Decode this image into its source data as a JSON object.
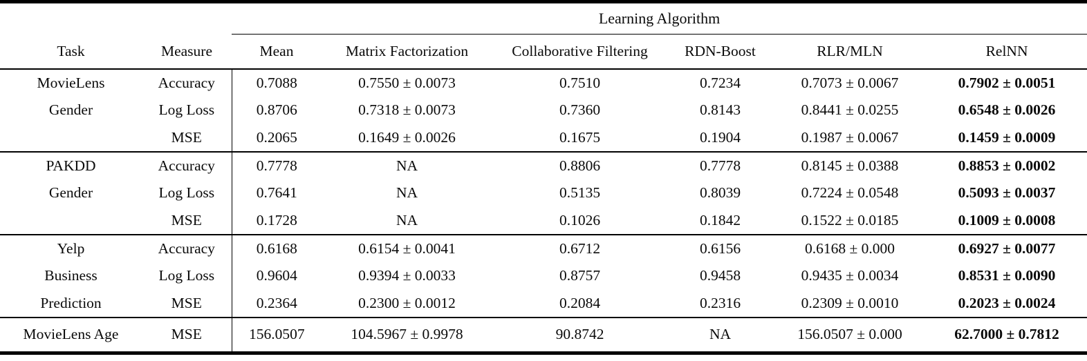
{
  "table": {
    "group_header": "Learning Algorithm",
    "columns": [
      "Task",
      "Measure",
      "Mean",
      "Matrix Factorization",
      "Collaborative Filtering",
      "RDN-Boost",
      "RLR/MLN",
      "RelNN"
    ],
    "groups": [
      {
        "task_lines": [
          "MovieLens",
          "Gender",
          ""
        ],
        "rows": [
          {
            "measure": "Accuracy",
            "values": [
              "0.7088",
              "0.7550 ± 0.0073",
              "0.7510",
              "0.7234",
              "0.7073 ± 0.0067",
              "0.7902 ± 0.0051"
            ]
          },
          {
            "measure": "Log Loss",
            "values": [
              "0.8706",
              "0.7318 ± 0.0073",
              "0.7360",
              "0.8143",
              "0.8441 ± 0.0255",
              "0.6548 ± 0.0026"
            ]
          },
          {
            "measure": "MSE",
            "values": [
              "0.2065",
              "0.1649 ± 0.0026",
              "0.1675",
              "0.1904",
              "0.1987 ± 0.0067",
              "0.1459 ± 0.0009"
            ]
          }
        ]
      },
      {
        "task_lines": [
          "PAKDD",
          "Gender",
          ""
        ],
        "rows": [
          {
            "measure": "Accuracy",
            "values": [
              "0.7778",
              "NA",
              "0.8806",
              "0.7778",
              "0.8145 ± 0.0388",
              "0.8853 ± 0.0002"
            ]
          },
          {
            "measure": "Log Loss",
            "values": [
              "0.7641",
              "NA",
              "0.5135",
              "0.8039",
              "0.7224 ± 0.0548",
              "0.5093 ± 0.0037"
            ]
          },
          {
            "measure": "MSE",
            "values": [
              "0.1728",
              "NA",
              "0.1026",
              "0.1842",
              "0.1522 ± 0.0185",
              "0.1009 ± 0.0008"
            ]
          }
        ]
      },
      {
        "task_lines": [
          "Yelp",
          "Business",
          "Prediction"
        ],
        "rows": [
          {
            "measure": "Accuracy",
            "values": [
              "0.6168",
              "0.6154 ± 0.0041",
              "0.6712",
              "0.6156",
              "0.6168 ± 0.000",
              "0.6927 ± 0.0077"
            ]
          },
          {
            "measure": "Log Loss",
            "values": [
              "0.9604",
              "0.9394 ± 0.0033",
              "0.8757",
              "0.9458",
              "0.9435 ± 0.0034",
              "0.8531 ± 0.0090"
            ]
          },
          {
            "measure": "MSE",
            "values": [
              "0.2364",
              "0.2300 ± 0.0012",
              "0.2084",
              "0.2316",
              "0.2309 ± 0.0010",
              "0.2023 ± 0.0024"
            ]
          }
        ]
      },
      {
        "task_lines": [
          "MovieLens Age"
        ],
        "rows": [
          {
            "measure": "MSE",
            "values": [
              "156.0507",
              "104.5967 ± 0.9978",
              "90.8742",
              "NA",
              "156.0507 ± 0.000",
              "62.7000 ± 0.7812"
            ]
          }
        ]
      }
    ]
  }
}
